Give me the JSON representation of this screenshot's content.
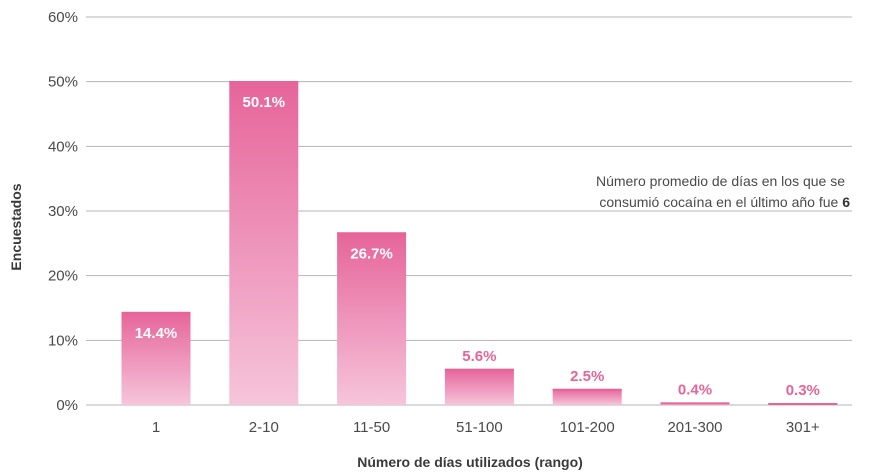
{
  "chart_data": {
    "type": "bar",
    "categories": [
      "1",
      "2-10",
      "11-50",
      "51-100",
      "101-200",
      "201-300",
      "301+"
    ],
    "values": [
      14.4,
      50.1,
      26.7,
      5.6,
      2.5,
      0.4,
      0.3
    ],
    "value_labels": [
      "14.4%",
      "50.1%",
      "26.7%",
      "5.6%",
      "2.5%",
      "0.4%",
      "0.3%"
    ],
    "xlabel": "Número de días utilizados (rango)",
    "ylabel": "Encuestados",
    "ylim": [
      0,
      60
    ],
    "yticks": [
      "0%",
      "10%",
      "20%",
      "30%",
      "40%",
      "50%",
      "60%"
    ],
    "grid": true,
    "annotation": {
      "line1": "Número promedio de días en los que se",
      "line2": "consumió cocaína en el último año fue ",
      "line2_bold": "6"
    },
    "colors": {
      "bar_top": "#e6649a",
      "bar_bottom": "#f6c5db",
      "label_outside": "#e6649a",
      "grid": "#b5b5b5"
    }
  }
}
